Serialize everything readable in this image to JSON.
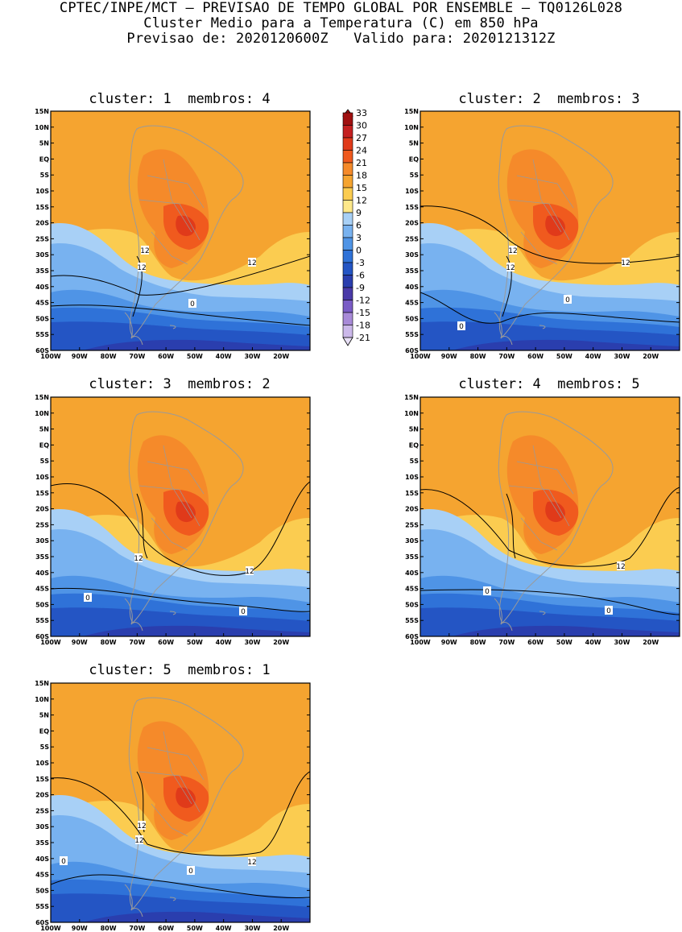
{
  "header": {
    "line1": "CPTEC/INPE/MCT – PREVISAO DE TEMPO GLOBAL POR ENSEMBLE – TQ0126L028",
    "line2": "Cluster Medio para a Temperatura (C) em 850 hPa",
    "line3": "Previsao de: 2020120600Z   Valido para: 2020121312Z"
  },
  "panels": [
    {
      "title": "cluster: 1  membros: 4"
    },
    {
      "title": "cluster: 2  membros: 3"
    },
    {
      "title": "cluster: 3  membros: 2"
    },
    {
      "title": "cluster: 4  membros: 5"
    },
    {
      "title": "cluster: 5  membros: 1"
    }
  ],
  "axes": {
    "lat_labels": [
      "15N",
      "10N",
      "5N",
      "EQ",
      "5S",
      "10S",
      "15S",
      "20S",
      "25S",
      "30S",
      "35S",
      "40S",
      "45S",
      "50S",
      "55S",
      "60S"
    ],
    "lon_labels": [
      "100W",
      "90W",
      "80W",
      "70W",
      "60W",
      "50W",
      "40W",
      "30W",
      "20W"
    ]
  },
  "colorbar": {
    "labels": [
      "33",
      "30",
      "27",
      "24",
      "21",
      "18",
      "15",
      "12",
      "9",
      "6",
      "3",
      "0",
      "-3",
      "-6",
      "-9",
      "-12",
      "-15",
      "-18",
      "-21"
    ],
    "colors": [
      "#a01010",
      "#c42020",
      "#e03a1a",
      "#f05a1e",
      "#f58a2a",
      "#f5a430",
      "#fbcc50",
      "#fde88a",
      "#a8d0f6",
      "#78b2f0",
      "#4f94e6",
      "#2f72d8",
      "#2455c4",
      "#2a3eae",
      "#4a3aa8",
      "#7a5cc6",
      "#a88ad8",
      "#cbb8ea"
    ]
  },
  "contour_labels": {
    "p1": [
      "12",
      "12",
      "12",
      "0"
    ],
    "p2": [
      "12",
      "12",
      "12",
      "0",
      "0"
    ],
    "p3": [
      "12",
      "12",
      "0",
      "0"
    ],
    "p4": [
      "12",
      "0",
      "0"
    ],
    "p5": [
      "12",
      "12",
      "12",
      "0",
      "0"
    ]
  }
}
